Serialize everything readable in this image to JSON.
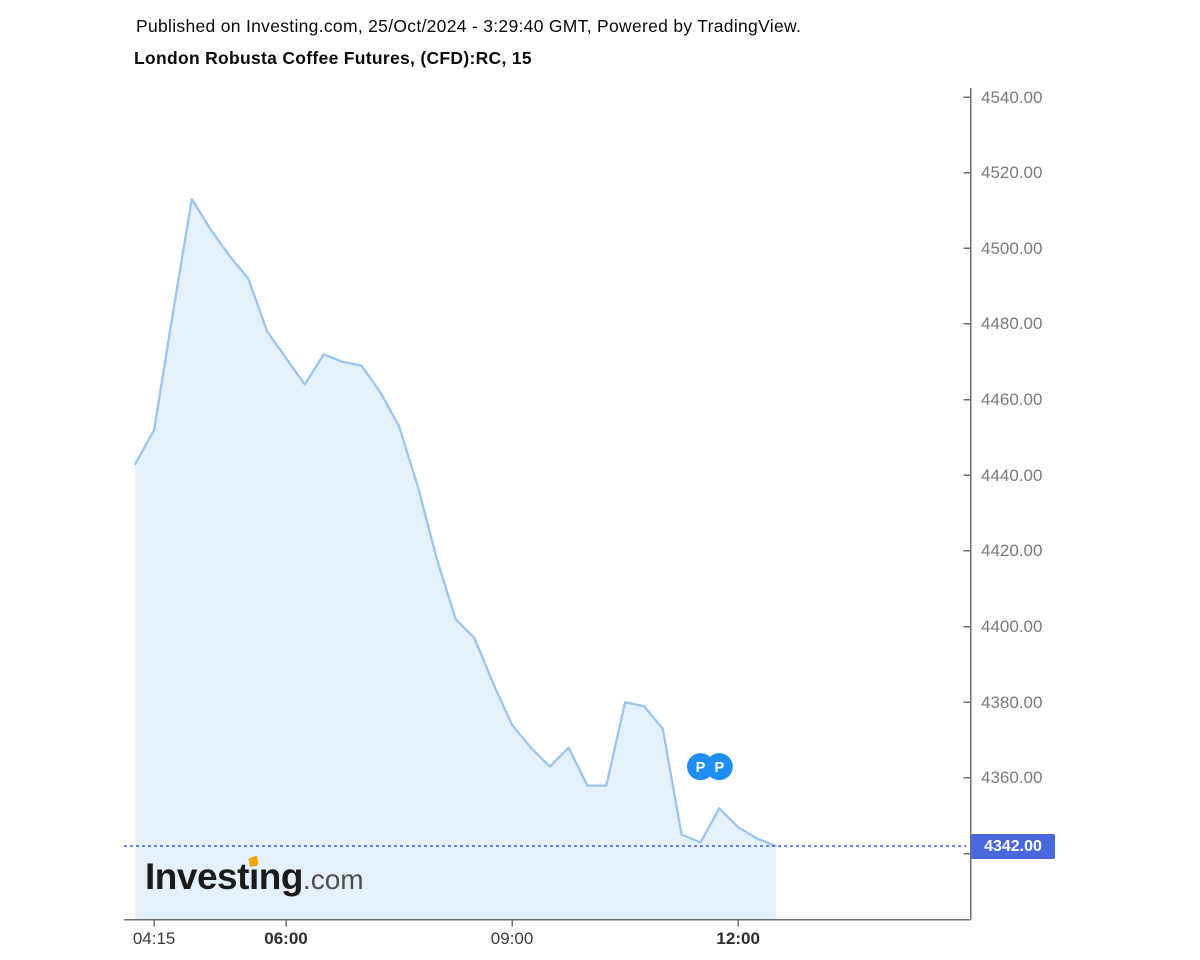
{
  "header": {
    "published": "Published on Investing.com, 25/Oct/2024 - 3:29:40 GMT, Powered by TradingView.",
    "title": "London Robusta Coffee Futures, (CFD):RC, 15"
  },
  "chart_data": {
    "type": "area",
    "title": "London Robusta Coffee Futures, (CFD):RC, 15",
    "interval_minutes": 15,
    "x": [
      "04:00",
      "04:15",
      "04:30",
      "04:45",
      "05:00",
      "05:15",
      "05:30",
      "05:45",
      "06:00",
      "06:15",
      "06:30",
      "06:45",
      "07:00",
      "07:15",
      "07:30",
      "07:45",
      "08:00",
      "08:15",
      "08:30",
      "08:45",
      "09:00",
      "09:15",
      "09:30",
      "09:45",
      "10:00",
      "10:15",
      "10:30",
      "10:45",
      "11:00",
      "11:15",
      "11:30",
      "11:45",
      "12:00",
      "12:15",
      "12:30"
    ],
    "values": [
      4443,
      4452,
      4483,
      4513,
      4505,
      4498,
      4492,
      4478,
      4471,
      4464,
      4472,
      4470,
      4469,
      4462,
      4453,
      4437,
      4418,
      4402,
      4397,
      4385,
      4374,
      4368,
      4363,
      4368,
      4358,
      4358,
      4380,
      4379,
      4373,
      4345,
      4343,
      4352,
      4347,
      4344,
      4342
    ],
    "ylim": [
      4335,
      4545
    ],
    "grid": false,
    "legend": null,
    "xlabel": "",
    "ylabel": "",
    "y_ticks": [
      {
        "label": "4540.00",
        "value": 4540
      },
      {
        "label": "4520.00",
        "value": 4520
      },
      {
        "label": "4500.00",
        "value": 4500
      },
      {
        "label": "4480.00",
        "value": 4480
      },
      {
        "label": "4460.00",
        "value": 4460
      },
      {
        "label": "4440.00",
        "value": 4440
      },
      {
        "label": "4420.00",
        "value": 4420
      },
      {
        "label": "4400.00",
        "value": 4400
      },
      {
        "label": "4380.00",
        "value": 4380
      },
      {
        "label": "4360.00",
        "value": 4360
      },
      {
        "label": "4340.00",
        "value": 4340
      }
    ],
    "x_ticks": [
      {
        "label": "04:15",
        "time": "04:15",
        "bold": false
      },
      {
        "label": "06:00",
        "time": "06:00",
        "bold": true
      },
      {
        "label": "09:00",
        "time": "09:00",
        "bold": false
      },
      {
        "label": "12:00",
        "time": "12:00",
        "bold": true
      }
    ],
    "last_price": "4342.00",
    "last_price_value": 4342,
    "dotted_line_price": 4342,
    "markers": [
      {
        "label": "P",
        "time": "11:30",
        "price": 4363
      },
      {
        "label": "P",
        "time": "11:45",
        "price": 4363
      }
    ],
    "colors": {
      "line": "#9dc4ec",
      "fill": "#e4f1fa",
      "accent_blue": "#4a68de",
      "marker_blue": "#1e8ef5",
      "axis_gray": "#6e6e6e",
      "y_label_gray": "#7a7a7a",
      "x_label_dark": "#3a3a3a"
    }
  },
  "logo": {
    "part1": "Invest",
    "accent_letter": "i",
    "part2": "ng",
    "tld": ".com",
    "orange": "#f7a500"
  }
}
